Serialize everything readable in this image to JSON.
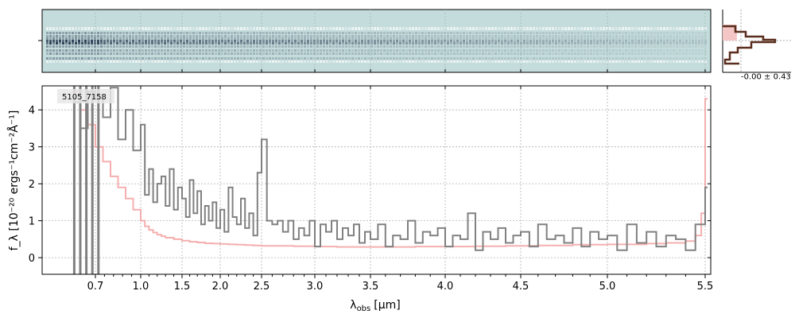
{
  "chart_data": {
    "type": "line",
    "step": true,
    "annotation": "5105_7158",
    "xlabel_main": "λ",
    "xlabel_sub": "obs",
    "xlabel_unit": "[μm]",
    "ylabel": "f_λ [10⁻²⁰ ergs⁻¹cm⁻²Å⁻¹]",
    "xlim": [
      0.52,
      5.53
    ],
    "ylim": [
      -0.45,
      4.65
    ],
    "x_tick_labels": [
      "0.7",
      "1.0",
      "1.5",
      "2.0",
      "2.5",
      "3.0",
      "3.5",
      "4.0",
      "4.5",
      "5.0",
      "5.5"
    ],
    "x_tick_values": [
      0.7,
      1.0,
      1.5,
      2.0,
      2.5,
      3.0,
      3.5,
      4.0,
      4.5,
      5.0,
      5.5
    ],
    "y_tick_labels": [
      "0",
      "1",
      "2",
      "3",
      "4"
    ],
    "y_tick_values": [
      0,
      1,
      2,
      3,
      4
    ],
    "grid": true,
    "series": [
      {
        "role": "flux",
        "color": "#808080",
        "x": [
          0.55,
          0.6,
          0.65,
          0.7,
          0.75,
          0.8,
          0.85,
          0.9,
          0.95,
          1.0,
          1.05,
          1.1,
          1.15,
          1.2,
          1.25,
          1.3,
          1.35,
          1.4,
          1.45,
          1.5,
          1.55,
          1.6,
          1.65,
          1.7,
          1.75,
          1.8,
          1.85,
          1.9,
          1.95,
          2.0,
          2.05,
          2.1,
          2.15,
          2.2,
          2.25,
          2.3,
          2.35,
          2.4,
          2.45,
          2.5,
          2.55,
          2.6,
          2.65,
          2.7,
          2.75,
          2.8,
          2.85,
          2.9,
          2.95,
          3.0,
          3.05,
          3.1,
          3.15,
          3.2,
          3.25,
          3.3,
          3.35,
          3.4,
          3.45,
          3.5,
          3.55,
          3.6,
          3.65,
          3.7,
          3.75,
          3.8,
          3.85,
          3.9,
          3.95,
          4.0,
          4.05,
          4.1,
          4.15,
          4.2,
          4.25,
          4.3,
          4.35,
          4.4,
          4.45,
          4.5,
          4.55,
          4.6,
          4.65,
          4.7,
          4.75,
          4.8,
          4.85,
          4.9,
          4.95,
          5.0,
          5.05,
          5.1,
          5.15,
          5.2,
          5.25,
          5.3,
          5.35,
          5.4,
          5.45,
          5.5
        ],
        "y": [
          4.2,
          3.5,
          4.5,
          4.3,
          3.8,
          4.6,
          3.2,
          4.0,
          2.9,
          3.6,
          1.7,
          2.4,
          1.5,
          2.0,
          2.2,
          1.4,
          2.4,
          1.3,
          1.9,
          1.6,
          1.1,
          2.1,
          1.2,
          1.8,
          0.9,
          1.4,
          1.0,
          1.5,
          0.8,
          1.3,
          0.7,
          1.9,
          1.1,
          0.9,
          1.6,
          0.8,
          1.2,
          0.6,
          2.3,
          3.2,
          1.0,
          0.9,
          1.0,
          0.7,
          1.0,
          0.5,
          0.8,
          0.6,
          1.0,
          0.3,
          0.9,
          0.7,
          1.0,
          0.5,
          0.8,
          0.6,
          0.9,
          0.4,
          0.7,
          0.5,
          0.9,
          0.3,
          0.6,
          0.5,
          1.0,
          0.4,
          0.7,
          0.6,
          0.8,
          0.3,
          0.6,
          0.5,
          1.2,
          0.2,
          0.7,
          0.5,
          0.8,
          0.4,
          0.6,
          0.7,
          0.3,
          0.9,
          0.5,
          0.6,
          0.4,
          0.8,
          0.3,
          0.7,
          0.5,
          0.6,
          0.2,
          0.9,
          0.4,
          0.7,
          0.3,
          0.6,
          0.5,
          0.2,
          0.9,
          1.9
        ]
      },
      {
        "role": "error",
        "color": "#f4a6a6",
        "x": [
          0.55,
          0.6,
          0.65,
          0.7,
          0.75,
          0.8,
          0.85,
          0.9,
          0.95,
          1.0,
          1.05,
          1.1,
          1.15,
          1.2,
          1.25,
          1.3,
          1.4,
          1.5,
          1.6,
          1.7,
          1.8,
          1.9,
          2.0,
          2.1,
          2.2,
          2.3,
          2.4,
          2.5,
          2.6,
          2.8,
          3.0,
          3.2,
          3.4,
          3.6,
          3.8,
          4.0,
          4.2,
          4.4,
          4.6,
          4.8,
          5.0,
          5.2,
          5.3,
          5.4,
          5.45,
          5.48,
          5.5
        ],
        "y": [
          4.5,
          4.0,
          3.6,
          3.0,
          2.6,
          2.2,
          1.9,
          1.6,
          1.3,
          1.0,
          0.85,
          0.75,
          0.68,
          0.62,
          0.58,
          0.54,
          0.5,
          0.46,
          0.43,
          0.41,
          0.39,
          0.38,
          0.37,
          0.36,
          0.35,
          0.34,
          0.33,
          0.32,
          0.32,
          0.31,
          0.3,
          0.29,
          0.29,
          0.29,
          0.3,
          0.3,
          0.31,
          0.32,
          0.33,
          0.35,
          0.36,
          0.38,
          0.4,
          0.45,
          0.6,
          1.2,
          4.3
        ]
      }
    ],
    "histogram_panel": {
      "annotation": "-0.00 ± 0.43"
    }
  },
  "colors": {
    "flux": "#808080",
    "error": "#f4a6a6",
    "spectrum2d_bg": "#c5dcdc",
    "hist_line": "#5a2e1e"
  }
}
